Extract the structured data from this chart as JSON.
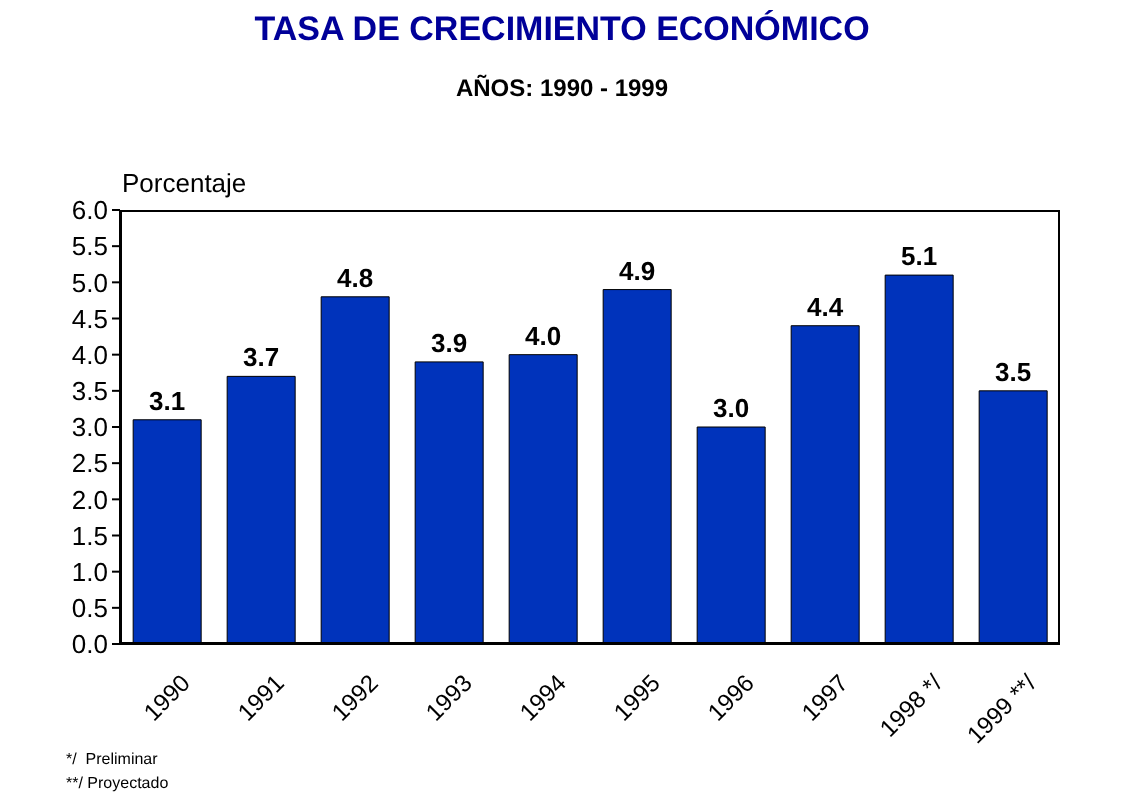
{
  "chart_data": {
    "type": "bar",
    "title": "TASA DE CRECIMIENTO ECONÓMICO",
    "subtitle": "AÑOS: 1990 - 1999",
    "ylabel": "Porcentaje",
    "categories": [
      "1990",
      "1991",
      "1992",
      "1993",
      "1994",
      "1995",
      "1996",
      "1997",
      "1998 */",
      "1999 **/"
    ],
    "values": [
      3.1,
      3.7,
      4.8,
      3.9,
      4.0,
      4.9,
      3.0,
      4.4,
      5.1,
      3.5
    ],
    "color": "#0033bb",
    "ylim": [
      0,
      6
    ],
    "yticks": [
      {
        "value": 0,
        "label": "0.0"
      },
      {
        "value": 0.5,
        "label": "0.5"
      },
      {
        "value": 1,
        "label": "1.0"
      },
      {
        "value": 1.5,
        "label": "1.5"
      },
      {
        "value": 2,
        "label": "2.0"
      },
      {
        "value": 2.5,
        "label": "2.5"
      },
      {
        "value": 3,
        "label": "3.0"
      },
      {
        "value": 3.5,
        "label": "3.5"
      },
      {
        "value": 4,
        "label": "4.0"
      },
      {
        "value": 4.5,
        "label": "4.5"
      },
      {
        "value": 5,
        "label": "5.0"
      },
      {
        "value": 5.5,
        "label": "5.5"
      },
      {
        "value": 6,
        "label": "6.0"
      }
    ],
    "value_labels": [
      "3.1",
      "3.7",
      "4.8",
      "3.9",
      "4.0",
      "4.9",
      "3.0",
      "4.4",
      "5.1",
      "3.5"
    ],
    "annotations": [
      "*/  Preliminar",
      "**/ Proyectado"
    ],
    "grid": false,
    "legend": false
  }
}
